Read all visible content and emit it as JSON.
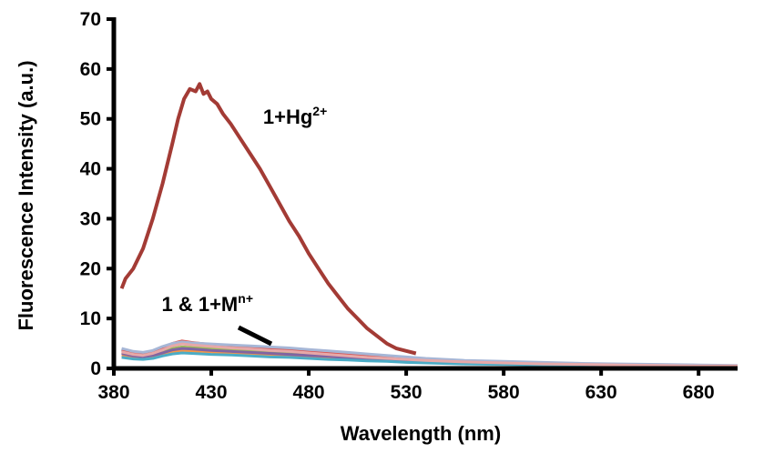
{
  "chart_data": {
    "type": "line",
    "title": "",
    "xlabel": "Wavelength (nm)",
    "ylabel": "Fluorescence Intensity (a.u.)",
    "xlim": [
      380,
      700
    ],
    "ylim": [
      0,
      70
    ],
    "xticks": [
      "380",
      "430",
      "480",
      "530",
      "580",
      "630",
      "680"
    ],
    "yticks": [
      "0",
      "10",
      "20",
      "30",
      "40",
      "50",
      "60",
      "70"
    ],
    "grid": false,
    "legend": "none",
    "annotations": [
      {
        "base": "1+Hg",
        "sup": "2+",
        "x": 473,
        "y": 49
      },
      {
        "base": "1 & 1+M",
        "sup": "n+",
        "x": 428,
        "y": 11.5
      }
    ],
    "series": [
      {
        "color": "#a33b35",
        "x": [
          384,
          386,
          390,
          395,
          400,
          405,
          410,
          413,
          416,
          419,
          422,
          424,
          426,
          428,
          430,
          433,
          436,
          440,
          445,
          450,
          455,
          460,
          465,
          470,
          475,
          480,
          485,
          490,
          495,
          500,
          505,
          510,
          515,
          520,
          525,
          530,
          535
        ],
        "y": [
          16,
          18,
          20,
          24,
          30,
          37,
          45,
          50,
          54,
          56,
          55.5,
          57,
          55,
          55.5,
          54,
          53,
          51,
          49,
          46,
          43,
          40,
          36.5,
          33,
          29.5,
          26.5,
          23,
          20,
          17,
          14.5,
          12,
          10,
          8,
          6.5,
          5,
          4,
          3.5,
          3
        ]
      },
      {
        "color": "#4f81bd",
        "x": [
          384,
          390,
          395,
          400,
          405,
          410,
          415,
          420,
          430,
          440,
          450,
          460,
          470,
          480,
          490,
          500,
          510,
          520,
          530,
          540,
          560,
          580,
          600,
          620,
          640,
          660,
          680,
          700
        ],
        "y": [
          3.8,
          3.2,
          3.0,
          3.4,
          4.2,
          4.8,
          5.0,
          4.9,
          4.7,
          4.6,
          4.4,
          4.2,
          4.0,
          3.7,
          3.4,
          3.0,
          2.7,
          2.4,
          2.1,
          1.8,
          1.4,
          1.2,
          1.0,
          0.9,
          0.8,
          0.7,
          0.6,
          0.5
        ]
      },
      {
        "color": "#d9534f",
        "x": [
          384,
          390,
          395,
          400,
          405,
          410,
          415,
          420,
          430,
          440,
          450,
          460,
          470,
          480,
          490,
          500,
          510,
          520,
          530,
          540,
          560,
          580,
          600,
          620,
          640,
          660,
          680,
          700
        ],
        "y": [
          3.5,
          3.0,
          2.8,
          3.2,
          4.0,
          5.0,
          5.5,
          5.2,
          4.8,
          4.5,
          4.2,
          3.9,
          3.6,
          3.3,
          3.0,
          2.7,
          2.4,
          2.1,
          1.9,
          1.6,
          1.3,
          1.1,
          0.9,
          0.8,
          0.7,
          0.6,
          0.5,
          0.4
        ]
      },
      {
        "color": "#9bbb59",
        "x": [
          384,
          390,
          395,
          400,
          405,
          410,
          415,
          420,
          430,
          440,
          450,
          460,
          470,
          480,
          490,
          500,
          510,
          520,
          530,
          540,
          560,
          580,
          600,
          620,
          640,
          660,
          680,
          700
        ],
        "y": [
          3.2,
          2.7,
          2.5,
          2.8,
          3.4,
          4.0,
          4.3,
          4.2,
          4.0,
          3.8,
          3.6,
          3.4,
          3.2,
          2.9,
          2.6,
          2.3,
          2.1,
          1.9,
          1.7,
          1.5,
          1.2,
          1.0,
          0.9,
          0.8,
          0.7,
          0.6,
          0.5,
          0.4
        ]
      },
      {
        "color": "#f79646",
        "x": [
          384,
          390,
          395,
          400,
          405,
          410,
          415,
          420,
          430,
          440,
          450,
          460,
          470,
          480,
          490,
          500,
          510,
          520,
          530,
          540,
          560,
          580,
          600,
          620,
          640,
          660,
          680,
          700
        ],
        "y": [
          2.6,
          2.2,
          2.0,
          2.3,
          2.8,
          3.3,
          3.6,
          3.5,
          3.3,
          3.1,
          2.9,
          2.7,
          2.5,
          2.3,
          2.1,
          1.9,
          1.7,
          1.5,
          1.3,
          1.2,
          1.0,
          0.9,
          0.8,
          0.7,
          0.6,
          0.5,
          0.5,
          0.4
        ]
      },
      {
        "color": "#8064a2",
        "x": [
          384,
          390,
          395,
          400,
          405,
          410,
          415,
          420,
          430,
          440,
          450,
          460,
          470,
          480,
          490,
          500,
          510,
          520,
          530,
          540,
          560,
          580,
          600,
          620,
          640,
          660,
          680,
          700
        ],
        "y": [
          3.0,
          2.5,
          2.3,
          2.6,
          3.1,
          3.7,
          4.0,
          3.9,
          3.6,
          3.4,
          3.2,
          3.0,
          2.8,
          2.6,
          2.4,
          2.1,
          1.9,
          1.7,
          1.5,
          1.3,
          1.1,
          0.9,
          0.8,
          0.7,
          0.6,
          0.5,
          0.4,
          0.4
        ]
      },
      {
        "color": "#4bacc6",
        "x": [
          384,
          390,
          395,
          400,
          405,
          410,
          415,
          420,
          430,
          440,
          450,
          460,
          470,
          480,
          490,
          500,
          510,
          520,
          530,
          540,
          560,
          580,
          600,
          620,
          640,
          660,
          680,
          700
        ],
        "y": [
          2.2,
          1.9,
          1.8,
          2.0,
          2.5,
          2.9,
          3.1,
          3.0,
          2.8,
          2.7,
          2.5,
          2.3,
          2.2,
          2.0,
          1.8,
          1.7,
          1.5,
          1.4,
          1.2,
          1.1,
          0.9,
          0.8,
          0.7,
          0.6,
          0.5,
          0.5,
          0.4,
          0.3
        ]
      },
      {
        "color": "#a6b6d6",
        "x": [
          384,
          390,
          395,
          400,
          405,
          410,
          415,
          420,
          430,
          440,
          450,
          460,
          470,
          480,
          490,
          500,
          510,
          520,
          530,
          540,
          560,
          580,
          600,
          620,
          640,
          660,
          680,
          700
        ],
        "y": [
          4.0,
          3.4,
          3.2,
          3.6,
          4.4,
          5.0,
          5.3,
          5.1,
          4.9,
          4.7,
          4.5,
          4.3,
          4.1,
          3.8,
          3.5,
          3.2,
          2.9,
          2.6,
          2.3,
          2.0,
          1.6,
          1.4,
          1.2,
          1.0,
          0.9,
          0.8,
          0.7,
          0.6
        ]
      },
      {
        "color": "#e6a8a8",
        "x": [
          384,
          390,
          395,
          400,
          405,
          410,
          415,
          420,
          430,
          440,
          450,
          460,
          470,
          480,
          490,
          500,
          510,
          520,
          530,
          540,
          560,
          580,
          600,
          620,
          640,
          660,
          680,
          700
        ],
        "y": [
          3.3,
          2.8,
          2.6,
          3.0,
          3.7,
          4.5,
          4.9,
          4.7,
          4.4,
          4.1,
          3.9,
          3.6,
          3.4,
          3.1,
          2.8,
          2.5,
          2.2,
          2.0,
          1.8,
          1.6,
          1.3,
          1.1,
          0.9,
          0.8,
          0.7,
          0.6,
          0.5,
          0.5
        ]
      }
    ]
  }
}
